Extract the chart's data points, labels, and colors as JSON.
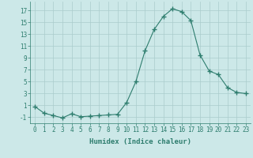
{
  "x": [
    0,
    1,
    2,
    3,
    4,
    5,
    6,
    7,
    8,
    9,
    10,
    11,
    12,
    13,
    14,
    15,
    16,
    17,
    18,
    19,
    20,
    21,
    22,
    23
  ],
  "y": [
    0.8,
    -0.3,
    -0.7,
    -1.1,
    -0.4,
    -0.9,
    -0.8,
    -0.7,
    -0.6,
    -0.5,
    1.5,
    5.0,
    10.2,
    13.8,
    16.0,
    17.3,
    16.8,
    15.3,
    9.5,
    6.8,
    6.2,
    4.0,
    3.2,
    3.0
  ],
  "line_color": "#2e7d6e",
  "marker": "+",
  "marker_size": 4,
  "bg_color": "#cce8e8",
  "grid_color": "#aacccc",
  "xlabel": "Humidex (Indice chaleur)",
  "xlim": [
    -0.5,
    23.5
  ],
  "ylim": [
    -2,
    18.5
  ],
  "yticks": [
    -1,
    1,
    3,
    5,
    7,
    9,
    11,
    13,
    15,
    17
  ],
  "xtick_labels": [
    "0",
    "1",
    "2",
    "3",
    "4",
    "5",
    "6",
    "7",
    "8",
    "9",
    "10",
    "11",
    "12",
    "13",
    "14",
    "15",
    "16",
    "17",
    "18",
    "19",
    "20",
    "21",
    "22",
    "23"
  ],
  "font_size": 5.5,
  "xlabel_fontsize": 6.5
}
